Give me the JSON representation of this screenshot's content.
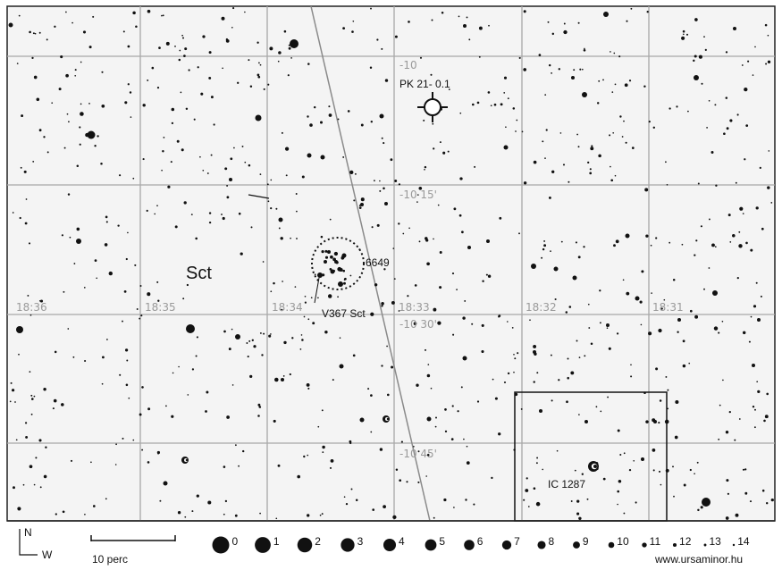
{
  "map": {
    "constellation": "Sct",
    "ra_labels": [
      "18:36",
      "18:35",
      "18:34",
      "18:33",
      "18:32",
      "18:31"
    ],
    "dec_labels": [
      "-10",
      "-10 15'",
      "-10 30'",
      "-10 45'"
    ],
    "objects": [
      {
        "label": "PK 21- 0.1",
        "type": "planetary-nebula"
      },
      {
        "label": "6649",
        "type": "open-cluster"
      },
      {
        "label": "V367 Sct",
        "type": "variable-star"
      },
      {
        "label": "IC 1287",
        "type": "nebula"
      }
    ]
  },
  "legend": {
    "north": "N",
    "west": "W",
    "scale_label": "10 perc",
    "magnitudes": [
      "0",
      "1",
      "2",
      "3",
      "4",
      "5",
      "6",
      "7",
      "8",
      "9",
      "10",
      "11",
      "12",
      "13",
      "14"
    ],
    "credit": "www.ursaminor.hu"
  }
}
